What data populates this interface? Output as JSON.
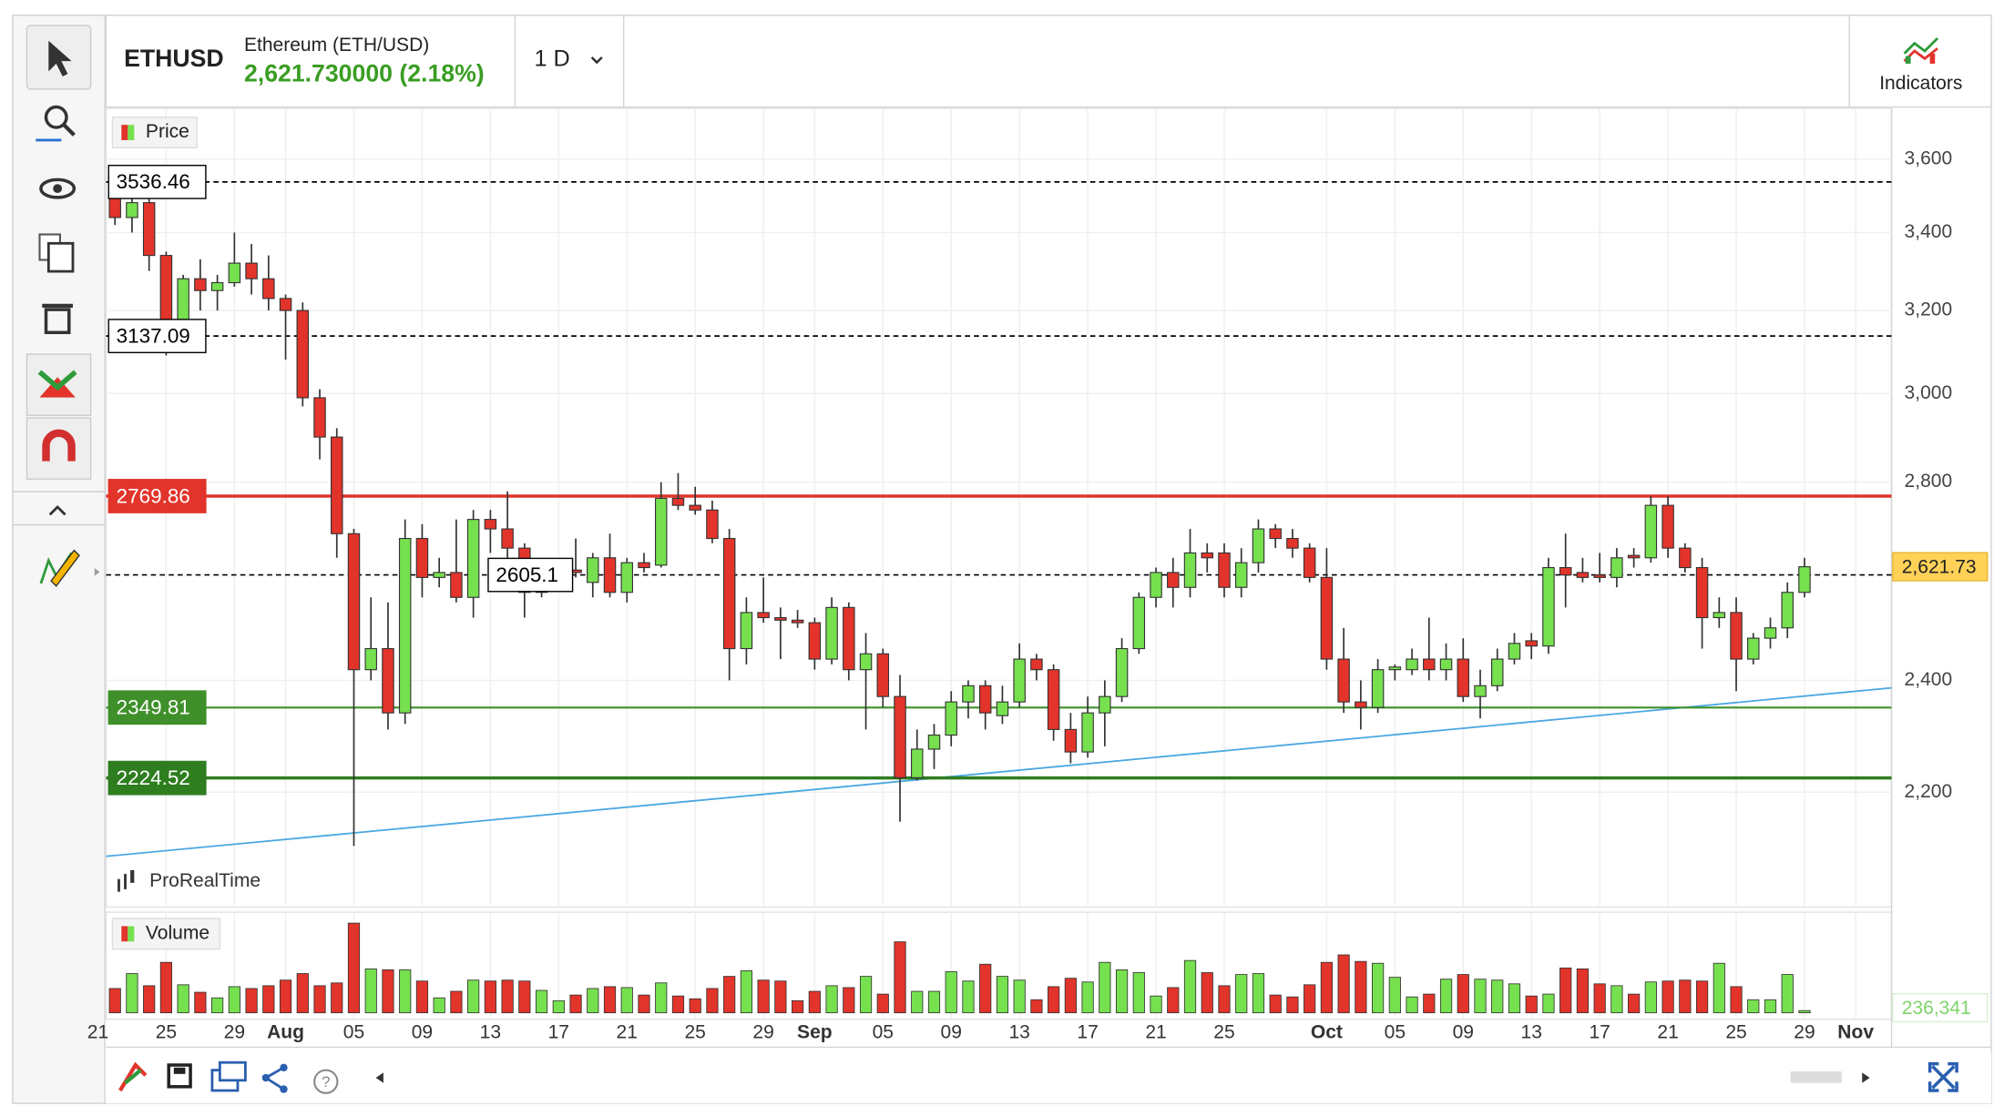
{
  "header": {
    "symbol": "ETHUSD",
    "name": "Ethereum (ETH/USD)",
    "price": "2,621.730000 (2.18%)",
    "timeframe": "1 D",
    "indicators": "Indicators"
  },
  "chart_data": {
    "type": "candlestick",
    "legend": "Price",
    "volume_legend": "Volume",
    "watermark": "ProRealTime",
    "log": true,
    "grid": true,
    "up_color": "#76e04f",
    "down_color": "#e2342b",
    "xlim": [
      -0.52,
      104.1
    ],
    "xticks": [
      {
        "value": -1,
        "label": "21"
      },
      {
        "value": 3,
        "label": "25"
      },
      {
        "value": 7,
        "label": "29"
      },
      {
        "value": 10,
        "label": "Aug"
      },
      {
        "value": 14,
        "label": "05"
      },
      {
        "value": 18,
        "label": "09"
      },
      {
        "value": 22,
        "label": "13"
      },
      {
        "value": 26,
        "label": "17"
      },
      {
        "value": 30,
        "label": "21"
      },
      {
        "value": 34,
        "label": "25"
      },
      {
        "value": 38,
        "label": "29"
      },
      {
        "value": 41,
        "label": "Sep"
      },
      {
        "value": 45,
        "label": "05"
      },
      {
        "value": 49,
        "label": "09"
      },
      {
        "value": 53,
        "label": "13"
      },
      {
        "value": 57,
        "label": "17"
      },
      {
        "value": 61,
        "label": "21"
      },
      {
        "value": 65,
        "label": "25"
      },
      {
        "value": 71,
        "label": "Oct"
      },
      {
        "value": 75,
        "label": "05"
      },
      {
        "value": 79,
        "label": "09"
      },
      {
        "value": 83,
        "label": "13"
      },
      {
        "value": 87,
        "label": "17"
      },
      {
        "value": 91,
        "label": "21"
      },
      {
        "value": 95,
        "label": "25"
      },
      {
        "value": 99,
        "label": "29"
      },
      {
        "value": 102,
        "label": "Nov"
      }
    ],
    "ylim": [
      2012,
      3745
    ],
    "yticks": [
      {
        "value": 3600,
        "label": "3,600"
      },
      {
        "value": 3400,
        "label": "3,400"
      },
      {
        "value": 3200,
        "label": "3,200"
      },
      {
        "value": 3000,
        "label": "3,000"
      },
      {
        "value": 2800,
        "label": "2,800"
      },
      {
        "value": 2400,
        "label": "2,400"
      },
      {
        "value": 2200,
        "label": "2,200"
      }
    ],
    "open": [
      3535,
      3440,
      3480,
      3340,
      3175,
      3280,
      3250,
      3270,
      3320,
      3280,
      3230,
      3200,
      2990,
      2900,
      2690,
      2420,
      2460,
      2340,
      2680,
      2600,
      2610,
      2560,
      2720,
      2700,
      2660,
      2570,
      2590,
      2615,
      2590,
      2640,
      2570,
      2630,
      2625,
      2765,
      2750,
      2740,
      2680,
      2460,
      2530,
      2520,
      2515,
      2510,
      2440,
      2540,
      2420,
      2450,
      2370,
      2225,
      2275,
      2300,
      2360,
      2390,
      2335,
      2360,
      2440,
      2420,
      2310,
      2270,
      2340,
      2370,
      2460,
      2560,
      2610,
      2580,
      2650,
      2650,
      2580,
      2630,
      2700,
      2680,
      2660,
      2600,
      2440,
      2360,
      2350,
      2420,
      2420,
      2440,
      2420,
      2440,
      2370,
      2390,
      2440,
      2475,
      2465,
      2620,
      2610,
      2605,
      2600,
      2645,
      2640,
      2750,
      2660,
      2620,
      2520,
      2530,
      2440,
      2480,
      2500,
      2570
    ],
    "high": [
      3560,
      3540,
      3490,
      3350,
      3290,
      3330,
      3290,
      3400,
      3370,
      3340,
      3240,
      3220,
      3010,
      2920,
      2700,
      2560,
      2550,
      2720,
      2710,
      2640,
      2720,
      2740,
      2740,
      2780,
      2670,
      2620,
      2620,
      2680,
      2650,
      2690,
      2640,
      2650,
      2800,
      2820,
      2790,
      2760,
      2700,
      2560,
      2600,
      2540,
      2535,
      2520,
      2560,
      2550,
      2490,
      2460,
      2410,
      2310,
      2320,
      2380,
      2400,
      2400,
      2390,
      2470,
      2450,
      2430,
      2340,
      2370,
      2400,
      2480,
      2570,
      2620,
      2640,
      2700,
      2670,
      2670,
      2660,
      2720,
      2710,
      2700,
      2670,
      2660,
      2500,
      2400,
      2440,
      2430,
      2460,
      2520,
      2470,
      2480,
      2420,
      2460,
      2490,
      2490,
      2640,
      2690,
      2640,
      2650,
      2660,
      2660,
      2770,
      2770,
      2670,
      2640,
      2560,
      2560,
      2490,
      2520,
      2590,
      2640
    ],
    "low": [
      3420,
      3400,
      3300,
      3090,
      3170,
      3200,
      3200,
      3260,
      3240,
      3200,
      3080,
      2970,
      2850,
      2640,
      2110,
      2400,
      2310,
      2320,
      2560,
      2580,
      2550,
      2520,
      2650,
      2640,
      2520,
      2560,
      2580,
      2600,
      2560,
      2560,
      2550,
      2610,
      2620,
      2740,
      2730,
      2670,
      2400,
      2430,
      2510,
      2440,
      2500,
      2420,
      2430,
      2400,
      2310,
      2350,
      2150,
      2220,
      2240,
      2280,
      2330,
      2310,
      2320,
      2350,
      2400,
      2290,
      2250,
      2260,
      2280,
      2360,
      2450,
      2540,
      2540,
      2560,
      2610,
      2560,
      2560,
      2610,
      2660,
      2640,
      2590,
      2420,
      2340,
      2310,
      2340,
      2400,
      2410,
      2400,
      2400,
      2360,
      2330,
      2380,
      2430,
      2440,
      2450,
      2540,
      2590,
      2590,
      2580,
      2620,
      2630,
      2640,
      2610,
      2460,
      2500,
      2380,
      2430,
      2460,
      2480,
      2560
    ],
    "close": [
      3440,
      3480,
      3340,
      3175,
      3280,
      3250,
      3270,
      3320,
      3280,
      3230,
      3200,
      2990,
      2900,
      2690,
      2420,
      2460,
      2340,
      2680,
      2600,
      2610,
      2560,
      2720,
      2700,
      2660,
      2570,
      2590,
      2615,
      2610,
      2640,
      2570,
      2630,
      2620,
      2765,
      2750,
      2740,
      2680,
      2460,
      2530,
      2520,
      2515,
      2510,
      2440,
      2540,
      2420,
      2450,
      2370,
      2225,
      2275,
      2300,
      2360,
      2390,
      2340,
      2360,
      2440,
      2420,
      2310,
      2270,
      2340,
      2370,
      2460,
      2560,
      2610,
      2580,
      2650,
      2640,
      2580,
      2630,
      2700,
      2680,
      2660,
      2600,
      2440,
      2360,
      2350,
      2420,
      2425,
      2440,
      2420,
      2440,
      2370,
      2390,
      2440,
      2470,
      2465,
      2620,
      2605,
      2600,
      2600,
      2640,
      2640,
      2750,
      2660,
      2620,
      2520,
      2530,
      2440,
      2480,
      2500,
      2570,
      2621.73
    ],
    "volume": [
      2600000,
      4200000,
      2900000,
      5400000,
      3000000,
      2200000,
      1600000,
      2800000,
      2600000,
      2900000,
      3500000,
      4200000,
      2900000,
      3200000,
      9600000,
      4700000,
      4600000,
      4600000,
      3400000,
      1600000,
      2300000,
      3500000,
      3400000,
      3500000,
      3400000,
      2400000,
      1300000,
      1900000,
      2600000,
      2800000,
      2700000,
      1900000,
      3200000,
      1800000,
      1500000,
      2600000,
      3900000,
      4500000,
      3500000,
      3400000,
      1300000,
      2300000,
      2900000,
      2700000,
      3900000,
      2000000,
      7600000,
      2300000,
      2300000,
      4400000,
      3400000,
      5200000,
      3900000,
      3500000,
      1400000,
      2800000,
      3700000,
      3300000,
      5400000,
      4600000,
      4300000,
      1800000,
      2700000,
      5600000,
      4300000,
      2900000,
      4100000,
      4200000,
      1900000,
      1700000,
      3000000,
      5400000,
      6200000,
      5500000,
      5300000,
      3800000,
      1700000,
      2000000,
      3600000,
      4100000,
      3600000,
      3500000,
      3100000,
      1800000,
      2000000,
      4800000,
      4700000,
      3100000,
      2900000,
      2000000,
      3300000,
      3400000,
      3500000,
      3400000,
      5300000,
      2800000,
      1400000,
      1400000,
      4100000,
      236341
    ],
    "vol_ylim": [
      0,
      10500000
    ],
    "levels": [
      {
        "value": 3536.46,
        "style": "dashed",
        "color": "#000000",
        "fill": "#ffffff"
      },
      {
        "value": 3137.09,
        "style": "dashed",
        "color": "#000000",
        "fill": "#ffffff"
      },
      {
        "value": 2769.86,
        "style": "solid",
        "color": "#e2342b",
        "fill": "#e2342b"
      },
      {
        "value": 2605.1,
        "style": "dashed",
        "color": "#000000",
        "fill": "#ffffff"
      },
      {
        "value": 2349.81,
        "style": "solid",
        "color": "#3f8f2a",
        "fill": "#3f8f2a"
      },
      {
        "value": 2224.52,
        "style": "solid",
        "color": "#2e7d1f",
        "fill": "#2e7d1f"
      }
    ],
    "trendline": {
      "x": [
        -0.52,
        104.1
      ],
      "y": [
        2093,
        2386
      ],
      "color": "#4aa8e0"
    },
    "last_price": {
      "value": 2621.73,
      "label": "2,621.73"
    },
    "last_volume": {
      "value": 236341,
      "label": "236,341"
    }
  }
}
